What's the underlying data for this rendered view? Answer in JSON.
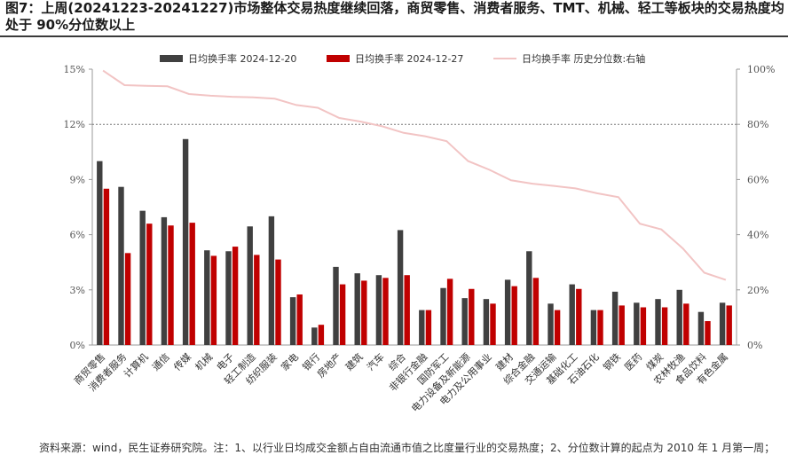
{
  "page": {
    "title": "图7：上周(20241223-20241227)市场整体交易热度继续回落，商贸零售、消费者服务、TMT、机械、轻工等板块的交易热度均处于 90%分位数以上",
    "footnote": "资料来源：wind，民生证券研究院。注：1、以行业日均成交金额占自由流通市值之比度量行业的交易热度；2、分位数计算的起点为 2010 年 1 月第一周；"
  },
  "chart_data": {
    "type": "bar",
    "categories": [
      "商贸零售",
      "消费者服务",
      "计算机",
      "通信",
      "传媒",
      "机械",
      "电子",
      "轻工制造",
      "纺织服装",
      "家电",
      "银行",
      "房地产",
      "建筑",
      "汽车",
      "综合",
      "非银行金融",
      "国防军工",
      "电力设备及新能源",
      "电力及公用事业",
      "建材",
      "综合金融",
      "交通运输",
      "基础化工",
      "石油石化",
      "钢铁",
      "医药",
      "煤炭",
      "农林牧渔",
      "食品饮料",
      "有色金属"
    ],
    "series": [
      {
        "name": "日均换手率 2024-12-20",
        "color": "#404040",
        "axis": "left",
        "values": [
          10.0,
          8.6,
          7.3,
          6.95,
          11.2,
          5.15,
          5.1,
          6.45,
          7.0,
          2.6,
          0.95,
          4.25,
          3.9,
          3.8,
          6.25,
          1.9,
          3.1,
          2.55,
          2.5,
          3.55,
          5.1,
          2.25,
          3.3,
          1.9,
          2.9,
          2.3,
          2.5,
          3.0,
          1.8,
          2.3
        ]
      },
      {
        "name": "日均换手率 2024-12-27",
        "color": "#c00000",
        "axis": "left",
        "values": [
          8.5,
          5.0,
          6.6,
          6.5,
          6.65,
          4.85,
          5.35,
          4.9,
          4.65,
          2.75,
          1.1,
          3.3,
          3.5,
          3.65,
          3.8,
          1.9,
          3.6,
          3.05,
          2.25,
          3.2,
          3.65,
          1.9,
          3.05,
          1.9,
          2.15,
          2.05,
          2.05,
          2.25,
          1.3,
          2.15
        ]
      },
      {
        "name": "日均换手率 历史分位数:右轴",
        "color": "#f2c4c4",
        "axis": "right",
        "type": "line",
        "values": [
          99.5,
          94.2,
          94.0,
          93.8,
          91.0,
          90.4,
          90.0,
          89.8,
          89.3,
          87.0,
          86.0,
          82.3,
          81.0,
          79.3,
          76.9,
          75.7,
          73.9,
          66.7,
          63.5,
          59.7,
          58.5,
          57.7,
          56.8,
          55.0,
          53.6,
          44.0,
          41.9,
          35.0,
          26.2,
          23.6
        ]
      }
    ],
    "left_axis": {
      "ylim": [
        0,
        15
      ],
      "ticks": [
        "0%",
        "3%",
        "6%",
        "9%",
        "12%",
        "15%"
      ]
    },
    "right_axis": {
      "ylim": [
        0,
        100
      ],
      "ticks": [
        "0%",
        "20%",
        "40%",
        "60%",
        "80%",
        "100%"
      ]
    },
    "reference_line": {
      "value": 80,
      "axis": "right",
      "style": "dotted"
    },
    "legend": {
      "position": "top-center"
    },
    "grid": false
  }
}
